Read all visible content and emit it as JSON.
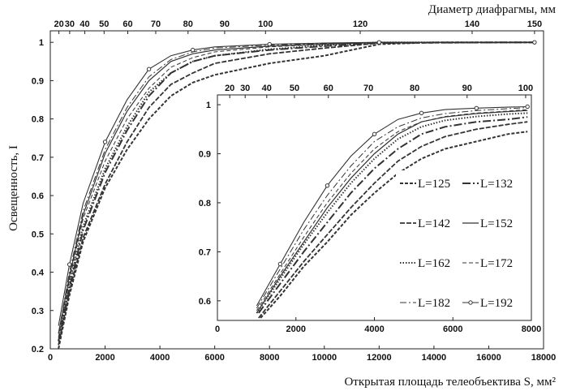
{
  "chart_data": [
    {
      "type": "line",
      "title": "",
      "xlabel": "Открытая площадь телеобъектива S, мм²",
      "ylabel": "Освещенность, I",
      "top_xlabel": "Диаметр диафрагмы, мм",
      "xlim": [
        0,
        18000
      ],
      "ylim": [
        0.2,
        1.03
      ],
      "x_ticks": [
        "0",
        "2000",
        "4000",
        "6000",
        "8000",
        "10000",
        "12000",
        "14000",
        "16000",
        "18000"
      ],
      "y_ticks": [
        "0.2",
        "0.3",
        "0.4",
        "0.5",
        "0.6",
        "0.7",
        "0.8",
        "0.9",
        "1"
      ],
      "top_ticks": [
        {
          "label": "20",
          "s": 314
        },
        {
          "label": "30",
          "s": 707
        },
        {
          "label": "40",
          "s": 1257
        },
        {
          "label": "50",
          "s": 1963
        },
        {
          "label": "60",
          "s": 2827
        },
        {
          "label": "70",
          "s": 3848
        },
        {
          "label": "80",
          "s": 5027
        },
        {
          "label": "90",
          "s": 6362
        },
        {
          "label": "100",
          "s": 7854
        },
        {
          "label": "120",
          "s": 11310
        },
        {
          "label": "140",
          "s": 15394
        },
        {
          "label": "150",
          "s": 17671
        }
      ],
      "grid": false,
      "series": [
        {
          "name": "L=125",
          "style": "dash-short",
          "points": [
            [
              300,
              0.2
            ],
            [
              700,
              0.34
            ],
            [
              1200,
              0.48
            ],
            [
              2000,
              0.62
            ],
            [
              2800,
              0.72
            ],
            [
              3600,
              0.8
            ],
            [
              4400,
              0.86
            ],
            [
              5200,
              0.895
            ],
            [
              6000,
              0.915
            ],
            [
              8000,
              0.945
            ],
            [
              10000,
              0.965
            ],
            [
              12000,
              0.995
            ],
            [
              14000,
              1.0
            ],
            [
              17671,
              1.0
            ]
          ]
        },
        {
          "name": "L=132",
          "style": "dash-long-dot",
          "points": [
            [
              300,
              0.22
            ],
            [
              700,
              0.36
            ],
            [
              1200,
              0.51
            ],
            [
              2000,
              0.66
            ],
            [
              2800,
              0.77
            ],
            [
              3600,
              0.86
            ],
            [
              4400,
              0.92
            ],
            [
              5200,
              0.95
            ],
            [
              6000,
              0.965
            ],
            [
              8000,
              0.98
            ],
            [
              10000,
              0.99
            ],
            [
              12000,
              0.999
            ],
            [
              17671,
              1.0
            ]
          ]
        },
        {
          "name": "L=142",
          "style": "dash",
          "points": [
            [
              300,
              0.21
            ],
            [
              700,
              0.35
            ],
            [
              1200,
              0.49
            ],
            [
              2000,
              0.63
            ],
            [
              2800,
              0.74
            ],
            [
              3600,
              0.83
            ],
            [
              4400,
              0.89
            ],
            [
              5200,
              0.92
            ],
            [
              6000,
              0.945
            ],
            [
              8000,
              0.97
            ],
            [
              10000,
              0.985
            ],
            [
              12000,
              0.998
            ],
            [
              17671,
              1.0
            ]
          ]
        },
        {
          "name": "L=152",
          "style": "solid",
          "points": [
            [
              300,
              0.24
            ],
            [
              700,
              0.39
            ],
            [
              1200,
              0.55
            ],
            [
              2000,
              0.71
            ],
            [
              2800,
              0.82
            ],
            [
              3600,
              0.9
            ],
            [
              4400,
              0.95
            ],
            [
              5200,
              0.97
            ],
            [
              6000,
              0.98
            ],
            [
              8000,
              0.99
            ],
            [
              10000,
              0.995
            ],
            [
              12000,
              1.0
            ],
            [
              17671,
              1.0
            ]
          ]
        },
        {
          "name": "L=162",
          "style": "dots",
          "points": [
            [
              300,
              0.22
            ],
            [
              700,
              0.37
            ],
            [
              1200,
              0.52
            ],
            [
              2000,
              0.67
            ],
            [
              2800,
              0.78
            ],
            [
              3600,
              0.87
            ],
            [
              4400,
              0.92
            ],
            [
              5200,
              0.95
            ],
            [
              6000,
              0.965
            ],
            [
              8000,
              0.982
            ],
            [
              10000,
              0.992
            ],
            [
              12000,
              1.0
            ],
            [
              17671,
              1.0
            ]
          ]
        },
        {
          "name": "L=172",
          "style": "dash-thin",
          "points": [
            [
              300,
              0.23
            ],
            [
              700,
              0.38
            ],
            [
              1200,
              0.54
            ],
            [
              2000,
              0.69
            ],
            [
              2800,
              0.8
            ],
            [
              3600,
              0.88
            ],
            [
              4400,
              0.935
            ],
            [
              5200,
              0.96
            ],
            [
              6000,
              0.975
            ],
            [
              8000,
              0.988
            ],
            [
              10000,
              0.995
            ],
            [
              12000,
              1.0
            ],
            [
              17671,
              1.0
            ]
          ]
        },
        {
          "name": "L=182",
          "style": "dash-dot",
          "points": [
            [
              300,
              0.24
            ],
            [
              700,
              0.4
            ],
            [
              1200,
              0.56
            ],
            [
              2000,
              0.72
            ],
            [
              2800,
              0.83
            ],
            [
              3600,
              0.91
            ],
            [
              4400,
              0.955
            ],
            [
              5200,
              0.975
            ],
            [
              6000,
              0.985
            ],
            [
              8000,
              0.993
            ],
            [
              10000,
              0.997
            ],
            [
              12000,
              1.0
            ],
            [
              17671,
              1.0
            ]
          ]
        },
        {
          "name": "L=192",
          "style": "solid-circle",
          "points": [
            [
              300,
              0.26
            ],
            [
              700,
              0.42
            ],
            [
              1200,
              0.58
            ],
            [
              2000,
              0.74
            ],
            [
              2800,
              0.85
            ],
            [
              3600,
              0.93
            ],
            [
              4400,
              0.965
            ],
            [
              5200,
              0.98
            ],
            [
              6000,
              0.988
            ],
            [
              8000,
              0.995
            ],
            [
              10000,
              0.998
            ],
            [
              12000,
              1.0
            ],
            [
              15394,
              1.0
            ],
            [
              17671,
              1.0
            ]
          ]
        }
      ]
    },
    {
      "type": "line",
      "title": "",
      "xlabel": "",
      "ylabel": "",
      "inset": true,
      "xlim": [
        0,
        8000
      ],
      "ylim": [
        0.56,
        1.02
      ],
      "x_ticks": [
        "0",
        "2000",
        "4000",
        "6000",
        "8000"
      ],
      "y_ticks": [
        "0.6",
        "0.7",
        "0.8",
        "0.9",
        "1"
      ],
      "top_ticks": [
        {
          "label": "20",
          "s": 314
        },
        {
          "label": "30",
          "s": 707
        },
        {
          "label": "40",
          "s": 1257
        },
        {
          "label": "50",
          "s": 1963
        },
        {
          "label": "60",
          "s": 2827
        },
        {
          "label": "70",
          "s": 3848
        },
        {
          "label": "80",
          "s": 5027
        },
        {
          "label": "90",
          "s": 6362
        },
        {
          "label": "100",
          "s": 7854
        }
      ],
      "legend_position": "center-right",
      "series": [
        {
          "name": "L=125",
          "style": "dash-short",
          "points": [
            [
              1100,
              0.565
            ],
            [
              1600,
              0.61
            ],
            [
              2200,
              0.67
            ],
            [
              2800,
              0.72
            ],
            [
              3400,
              0.775
            ],
            [
              4000,
              0.82
            ],
            [
              4600,
              0.86
            ],
            [
              5200,
              0.89
            ],
            [
              5800,
              0.91
            ],
            [
              6600,
              0.925
            ],
            [
              7400,
              0.94
            ],
            [
              7900,
              0.945
            ]
          ]
        },
        {
          "name": "L=132",
          "style": "dash-long-dot",
          "points": [
            [
              1050,
              0.575
            ],
            [
              1600,
              0.635
            ],
            [
              2200,
              0.7
            ],
            [
              2800,
              0.76
            ],
            [
              3400,
              0.82
            ],
            [
              4000,
              0.87
            ],
            [
              4600,
              0.91
            ],
            [
              5200,
              0.94
            ],
            [
              5800,
              0.955
            ],
            [
              6600,
              0.965
            ],
            [
              7400,
              0.97
            ],
            [
              7900,
              0.975
            ]
          ]
        },
        {
          "name": "L=142",
          "style": "dash",
          "points": [
            [
              1050,
              0.565
            ],
            [
              1600,
              0.62
            ],
            [
              2200,
              0.68
            ],
            [
              2800,
              0.735
            ],
            [
              3400,
              0.79
            ],
            [
              4000,
              0.84
            ],
            [
              4600,
              0.885
            ],
            [
              5200,
              0.915
            ],
            [
              5800,
              0.935
            ],
            [
              6600,
              0.95
            ],
            [
              7400,
              0.96
            ],
            [
              7900,
              0.965
            ]
          ]
        },
        {
          "name": "L=152",
          "style": "solid",
          "points": [
            [
              1000,
              0.575
            ],
            [
              1600,
              0.65
            ],
            [
              2200,
              0.72
            ],
            [
              2800,
              0.79
            ],
            [
              3400,
              0.85
            ],
            [
              4000,
              0.9
            ],
            [
              4600,
              0.94
            ],
            [
              5200,
              0.965
            ],
            [
              5800,
              0.975
            ],
            [
              6600,
              0.982
            ],
            [
              7400,
              0.986
            ],
            [
              7900,
              0.988
            ]
          ]
        },
        {
          "name": "L=162",
          "style": "dots",
          "points": [
            [
              1000,
              0.575
            ],
            [
              1600,
              0.645
            ],
            [
              2200,
              0.715
            ],
            [
              2800,
              0.78
            ],
            [
              3400,
              0.84
            ],
            [
              4000,
              0.89
            ],
            [
              4600,
              0.93
            ],
            [
              5200,
              0.955
            ],
            [
              5800,
              0.968
            ],
            [
              6600,
              0.976
            ],
            [
              7400,
              0.981
            ],
            [
              7900,
              0.983
            ]
          ]
        },
        {
          "name": "L=172",
          "style": "dash-thin",
          "points": [
            [
              1000,
              0.58
            ],
            [
              1600,
              0.655
            ],
            [
              2200,
              0.73
            ],
            [
              2800,
              0.8
            ],
            [
              3400,
              0.86
            ],
            [
              4000,
              0.91
            ],
            [
              4600,
              0.945
            ],
            [
              5200,
              0.965
            ],
            [
              5800,
              0.976
            ],
            [
              6600,
              0.983
            ],
            [
              7400,
              0.987
            ],
            [
              7900,
              0.99
            ]
          ]
        },
        {
          "name": "L=182",
          "style": "dash-dot",
          "points": [
            [
              1000,
              0.585
            ],
            [
              1600,
              0.665
            ],
            [
              2200,
              0.745
            ],
            [
              2800,
              0.815
            ],
            [
              3400,
              0.875
            ],
            [
              4000,
              0.925
            ],
            [
              4600,
              0.955
            ],
            [
              5200,
              0.973
            ],
            [
              5800,
              0.982
            ],
            [
              6600,
              0.988
            ],
            [
              7400,
              0.992
            ],
            [
              7900,
              0.994
            ]
          ]
        },
        {
          "name": "L=192",
          "style": "solid-circle",
          "points": [
            [
              1000,
              0.59
            ],
            [
              1600,
              0.675
            ],
            [
              2200,
              0.76
            ],
            [
              2800,
              0.835
            ],
            [
              3400,
              0.895
            ],
            [
              4000,
              0.94
            ],
            [
              4600,
              0.97
            ],
            [
              5200,
              0.983
            ],
            [
              5800,
              0.99
            ],
            [
              6600,
              0.993
            ],
            [
              7400,
              0.995
            ],
            [
              7900,
              0.996
            ]
          ]
        }
      ]
    }
  ]
}
